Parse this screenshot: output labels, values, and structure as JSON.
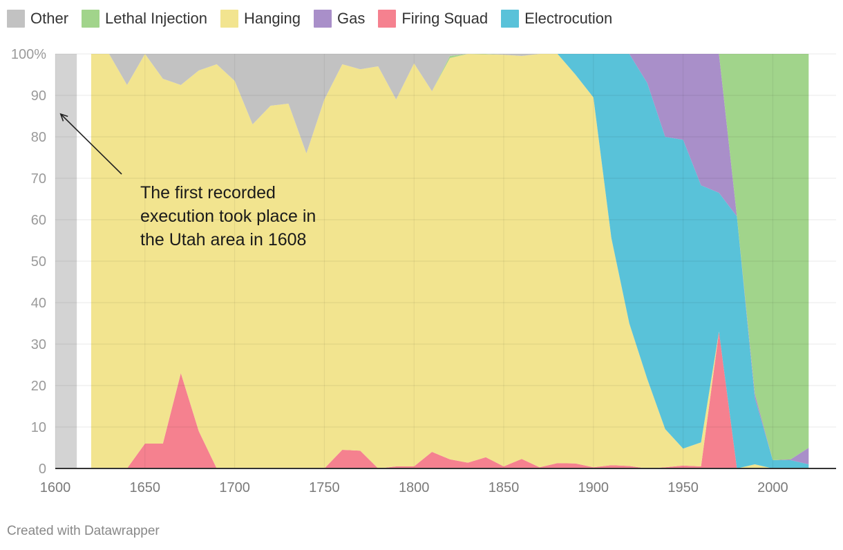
{
  "footer": "Created with Datawrapper",
  "chart_data": {
    "type": "area",
    "stacked": true,
    "normalized": true,
    "legend_position": "top",
    "grid": true,
    "x_ticks": [
      1600,
      1650,
      1700,
      1750,
      1800,
      1850,
      1900,
      1950,
      2000
    ],
    "y_ticks": [
      0,
      10,
      20,
      30,
      40,
      50,
      60,
      70,
      80,
      90,
      100
    ],
    "y_tick_labels": [
      "0",
      "10",
      "20",
      "30",
      "40",
      "50",
      "60",
      "70",
      "80",
      "90",
      "100%"
    ],
    "xlim": [
      1600,
      2020
    ],
    "ylim": [
      0,
      100
    ],
    "highlight_range": [
      1600,
      1612
    ],
    "x": [
      1620,
      1630,
      1640,
      1650,
      1660,
      1670,
      1680,
      1690,
      1700,
      1710,
      1720,
      1730,
      1740,
      1750,
      1760,
      1770,
      1780,
      1790,
      1800,
      1810,
      1820,
      1830,
      1840,
      1850,
      1860,
      1870,
      1880,
      1890,
      1900,
      1910,
      1920,
      1930,
      1940,
      1950,
      1960,
      1970,
      1980,
      1990,
      2000,
      2010,
      2020
    ],
    "series": [
      {
        "name": "Firing Squad",
        "color": "#f5818f",
        "values": [
          0,
          0,
          0,
          6,
          6,
          23,
          9,
          0,
          0,
          0,
          0,
          0,
          0,
          0,
          4.5,
          4.3,
          0,
          0.5,
          0.5,
          4,
          2.2,
          1.4,
          2.7,
          0.5,
          2.3,
          0.3,
          1.3,
          1.2,
          0.3,
          0.8,
          0.6,
          0,
          0.3,
          0.7,
          0.5,
          33,
          0,
          0,
          0,
          0,
          0
        ]
      },
      {
        "name": "Hanging",
        "color": "#f2e48f",
        "values": [
          100,
          100,
          92.5,
          94,
          88,
          69.5,
          87,
          97.5,
          93.5,
          83,
          87.5,
          88,
          76,
          89,
          93,
          92,
          97,
          88.5,
          97.2,
          87,
          96.8,
          98.6,
          97.2,
          99.3,
          97.2,
          99.7,
          98.7,
          93.8,
          89.2,
          54.8,
          34.4,
          21.6,
          9.2,
          4.1,
          5.8,
          0,
          0,
          1,
          0,
          0,
          0
        ]
      },
      {
        "name": "Electrocution",
        "color": "#59c2d9",
        "values": [
          0,
          0,
          0,
          0,
          0,
          0,
          0,
          0,
          0,
          0,
          0,
          0,
          0,
          0,
          0,
          0,
          0,
          0,
          0,
          0,
          0,
          0,
          0,
          0,
          0,
          0,
          0,
          5,
          10.5,
          44.4,
          65,
          71.4,
          70.5,
          74.5,
          62,
          33.5,
          60.8,
          16,
          2,
          2,
          1
        ]
      },
      {
        "name": "Gas",
        "color": "#a98fc9",
        "values": [
          0,
          0,
          0,
          0,
          0,
          0,
          0,
          0,
          0,
          0,
          0,
          0,
          0,
          0,
          0,
          0,
          0,
          0,
          0,
          0,
          0,
          0,
          0,
          0,
          0,
          0,
          0,
          0,
          0,
          0,
          0,
          7,
          20,
          20.7,
          31.7,
          33.5,
          0,
          1,
          0,
          0.2,
          4
        ]
      },
      {
        "name": "Lethal Injection",
        "color": "#a1d48b",
        "values": [
          0,
          0,
          0,
          0,
          0,
          0,
          0,
          0,
          0,
          0,
          0,
          0,
          0,
          0,
          0,
          0,
          0,
          0,
          0,
          0,
          0.5,
          0,
          0.1,
          0,
          0,
          0,
          0,
          0,
          0,
          0,
          0,
          0,
          0,
          0,
          0,
          0,
          39.2,
          82,
          98,
          97.8,
          95
        ]
      },
      {
        "name": "Other",
        "color": "#c2c2c2",
        "values": [
          0,
          0,
          7.5,
          0,
          6,
          7.5,
          4,
          2.5,
          6.5,
          17,
          12.5,
          12,
          24,
          11,
          2.5,
          3.7,
          3,
          11,
          2.3,
          9,
          0.5,
          0,
          0,
          0.2,
          0.5,
          0,
          0,
          0,
          0,
          0,
          0,
          0,
          0,
          0,
          0,
          0,
          0,
          0,
          0,
          0,
          0
        ]
      }
    ],
    "legend": [
      {
        "name": "Other",
        "color": "#c2c2c2"
      },
      {
        "name": "Lethal Injection",
        "color": "#a1d48b"
      },
      {
        "name": "Hanging",
        "color": "#f2e48f"
      },
      {
        "name": "Gas",
        "color": "#a98fc9"
      },
      {
        "name": "Firing Squad",
        "color": "#f5818f"
      },
      {
        "name": "Electrocution",
        "color": "#59c2d9"
      }
    ],
    "annotation": {
      "lines": [
        "The first recorded",
        "execution took place in",
        "the Utah area in 1608"
      ],
      "arrow_from": [
        1637,
        71
      ],
      "arrow_to": [
        1603,
        85.5
      ]
    }
  }
}
